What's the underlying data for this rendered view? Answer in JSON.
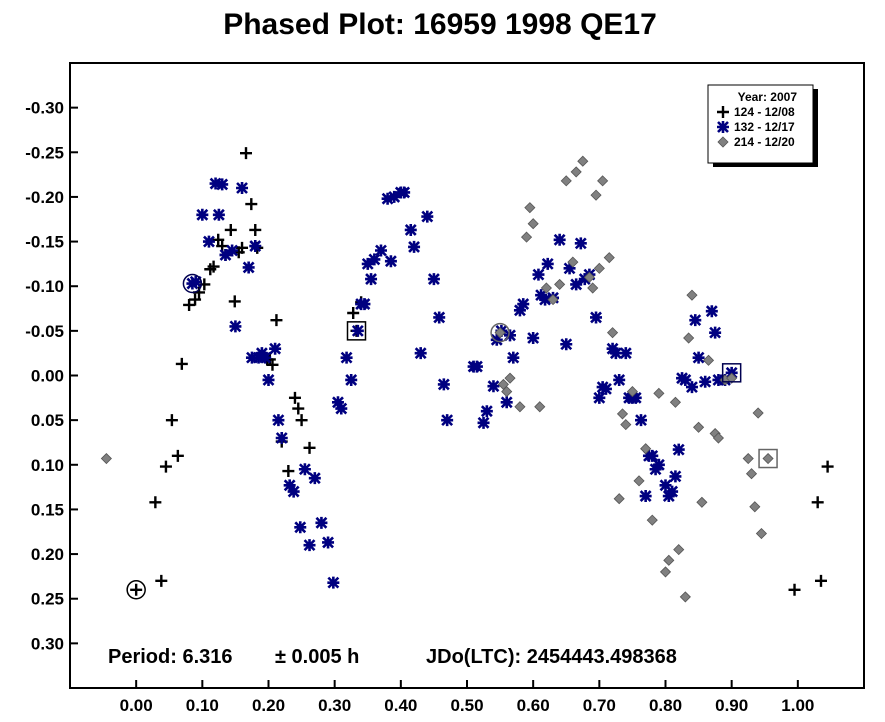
{
  "chart_data": {
    "type": "scatter",
    "title": "Phased Plot: 16959 1998 QE17",
    "xlabel": "",
    "ylabel": "",
    "xlim": [
      -0.1,
      1.1
    ],
    "ylim": [
      -0.35,
      0.35
    ],
    "y_inverted": true,
    "grid": false,
    "x_ticks": [
      0.0,
      0.1,
      0.2,
      0.3,
      0.4,
      0.5,
      0.6,
      0.7,
      0.8,
      0.9,
      1.0
    ],
    "x_tick_labels": [
      "0.00",
      "0.10",
      "0.20",
      "0.30",
      "0.40",
      "0.50",
      "0.60",
      "0.70",
      "0.80",
      "0.90",
      "1.00"
    ],
    "y_ticks": [
      -0.3,
      -0.25,
      -0.2,
      -0.15,
      -0.1,
      -0.05,
      0.0,
      0.05,
      0.1,
      0.15,
      0.2,
      0.25,
      0.3
    ],
    "y_tick_labels": [
      "-0.30",
      "-0.25",
      "-0.20",
      "-0.15",
      "-0.10",
      "-0.05",
      "0.00",
      "0.05",
      "0.10",
      "0.15",
      "0.20",
      "0.25",
      "0.30"
    ],
    "legend": {
      "placement": "top-right",
      "title": "Year: 2007",
      "entries": [
        "124 - 12/08",
        "132 - 12/17",
        "214 - 12/20"
      ]
    },
    "annotations": {
      "period_label": "Period: 6.316",
      "period_error": "± 0.005 h",
      "epoch": "JDo(LTC): 2454443.498368"
    },
    "series": [
      {
        "name": "124 - 12/08",
        "marker": "plus",
        "color": "#000000",
        "points": [
          [
            0.0,
            0.24
          ],
          [
            0.029,
            0.142
          ],
          [
            0.038,
            0.23
          ],
          [
            0.045,
            0.102
          ],
          [
            0.054,
            0.05
          ],
          [
            0.063,
            0.09
          ],
          [
            0.069,
            -0.013
          ],
          [
            0.08,
            -0.079
          ],
          [
            0.089,
            -0.085
          ],
          [
            0.095,
            -0.093
          ],
          [
            0.103,
            -0.102
          ],
          [
            0.112,
            -0.119
          ],
          [
            0.117,
            -0.122
          ],
          [
            0.124,
            -0.152
          ],
          [
            0.13,
            -0.145
          ],
          [
            0.135,
            -0.135
          ],
          [
            0.143,
            -0.163
          ],
          [
            0.149,
            -0.083
          ],
          [
            0.155,
            -0.138
          ],
          [
            0.16,
            -0.143
          ],
          [
            0.166,
            -0.249
          ],
          [
            0.174,
            -0.192
          ],
          [
            0.18,
            -0.163
          ],
          [
            0.183,
            -0.143
          ],
          [
            0.192,
            -0.022
          ],
          [
            0.198,
            -0.018
          ],
          [
            0.202,
            -0.018
          ],
          [
            0.206,
            -0.012
          ],
          [
            0.212,
            -0.062
          ],
          [
            0.22,
            0.074
          ],
          [
            0.23,
            0.107
          ],
          [
            0.24,
            0.025
          ],
          [
            0.245,
            0.037
          ],
          [
            0.25,
            0.05
          ],
          [
            0.262,
            0.081
          ],
          [
            0.328,
            -0.07
          ],
          [
            0.333,
            -0.05
          ],
          [
            0.34,
            -0.082
          ],
          [
            0.995,
            0.24
          ],
          [
            1.03,
            0.142
          ],
          [
            1.035,
            0.23
          ],
          [
            1.045,
            0.102
          ]
        ]
      },
      {
        "name": "132 - 12/17",
        "marker": "asterisk",
        "color": "#000080",
        "points": [
          [
            0.085,
            -0.103
          ],
          [
            0.09,
            -0.105
          ],
          [
            0.1,
            -0.18
          ],
          [
            0.11,
            -0.15
          ],
          [
            0.12,
            -0.215
          ],
          [
            0.125,
            -0.18
          ],
          [
            0.13,
            -0.214
          ],
          [
            0.135,
            -0.135
          ],
          [
            0.145,
            -0.14
          ],
          [
            0.15,
            -0.055
          ],
          [
            0.16,
            -0.21
          ],
          [
            0.17,
            -0.121
          ],
          [
            0.175,
            -0.02
          ],
          [
            0.18,
            -0.145
          ],
          [
            0.185,
            -0.02
          ],
          [
            0.19,
            -0.025
          ],
          [
            0.195,
            -0.02
          ],
          [
            0.2,
            0.005
          ],
          [
            0.21,
            -0.03
          ],
          [
            0.215,
            0.05
          ],
          [
            0.22,
            0.07
          ],
          [
            0.232,
            0.123
          ],
          [
            0.238,
            0.13
          ],
          [
            0.248,
            0.17
          ],
          [
            0.255,
            0.105
          ],
          [
            0.262,
            0.19
          ],
          [
            0.27,
            0.115
          ],
          [
            0.28,
            0.165
          ],
          [
            0.29,
            0.187
          ],
          [
            0.298,
            0.232
          ],
          [
            0.305,
            0.03
          ],
          [
            0.31,
            0.037
          ],
          [
            0.318,
            -0.02
          ],
          [
            0.325,
            0.005
          ],
          [
            0.335,
            -0.05
          ],
          [
            0.34,
            -0.08
          ],
          [
            0.345,
            -0.08
          ],
          [
            0.35,
            -0.125
          ],
          [
            0.355,
            -0.108
          ],
          [
            0.36,
            -0.13
          ],
          [
            0.37,
            -0.14
          ],
          [
            0.38,
            -0.198
          ],
          [
            0.385,
            -0.128
          ],
          [
            0.39,
            -0.2
          ],
          [
            0.4,
            -0.205
          ],
          [
            0.405,
            -0.205
          ],
          [
            0.415,
            -0.163
          ],
          [
            0.42,
            -0.144
          ],
          [
            0.43,
            -0.025
          ],
          [
            0.44,
            -0.178
          ],
          [
            0.45,
            -0.108
          ],
          [
            0.458,
            -0.065
          ],
          [
            0.465,
            0.01
          ],
          [
            0.47,
            0.05
          ],
          [
            0.51,
            -0.01
          ],
          [
            0.515,
            -0.01
          ],
          [
            0.525,
            0.053
          ],
          [
            0.53,
            0.04
          ],
          [
            0.54,
            0.012
          ],
          [
            0.545,
            -0.04
          ],
          [
            0.552,
            -0.05
          ],
          [
            0.56,
            0.03
          ],
          [
            0.565,
            -0.045
          ],
          [
            0.57,
            -0.02
          ],
          [
            0.58,
            -0.073
          ],
          [
            0.585,
            -0.08
          ],
          [
            0.6,
            -0.042
          ],
          [
            0.608,
            -0.113
          ],
          [
            0.612,
            -0.09
          ],
          [
            0.618,
            -0.085
          ],
          [
            0.622,
            -0.125
          ],
          [
            0.63,
            -0.087
          ],
          [
            0.64,
            -0.152
          ],
          [
            0.65,
            -0.035
          ],
          [
            0.655,
            -0.12
          ],
          [
            0.665,
            -0.102
          ],
          [
            0.672,
            -0.148
          ],
          [
            0.678,
            -0.108
          ],
          [
            0.685,
            -0.113
          ],
          [
            0.695,
            -0.065
          ],
          [
            0.7,
            0.025
          ],
          [
            0.705,
            0.013
          ],
          [
            0.71,
            0.015
          ],
          [
            0.72,
            -0.03
          ],
          [
            0.725,
            -0.025
          ],
          [
            0.73,
            0.005
          ],
          [
            0.74,
            -0.025
          ],
          [
            0.745,
            0.025
          ],
          [
            0.75,
            0.025
          ],
          [
            0.755,
            0.025
          ],
          [
            0.763,
            0.05
          ],
          [
            0.77,
            0.135
          ],
          [
            0.775,
            0.09
          ],
          [
            0.78,
            0.09
          ],
          [
            0.785,
            0.105
          ],
          [
            0.79,
            0.1
          ],
          [
            0.8,
            0.123
          ],
          [
            0.805,
            0.135
          ],
          [
            0.81,
            0.13
          ],
          [
            0.815,
            0.113
          ],
          [
            0.82,
            0.083
          ],
          [
            0.825,
            0.003
          ],
          [
            0.83,
            0.005
          ],
          [
            0.84,
            0.013
          ],
          [
            0.845,
            -0.062
          ],
          [
            0.85,
            -0.02
          ],
          [
            0.86,
            0.007
          ],
          [
            0.87,
            -0.072
          ],
          [
            0.875,
            -0.048
          ],
          [
            0.88,
            0.005
          ],
          [
            0.89,
            0.005
          ],
          [
            0.9,
            -0.003
          ]
        ]
      },
      {
        "name": "214 - 12/20",
        "marker": "diamond",
        "color": "#808080",
        "points": [
          [
            -0.045,
            0.093
          ],
          [
            0.55,
            -0.048
          ],
          [
            0.555,
            0.01
          ],
          [
            0.56,
            0.018
          ],
          [
            0.565,
            0.003
          ],
          [
            0.58,
            0.035
          ],
          [
            0.59,
            -0.155
          ],
          [
            0.595,
            -0.188
          ],
          [
            0.6,
            -0.17
          ],
          [
            0.61,
            0.035
          ],
          [
            0.62,
            -0.098
          ],
          [
            0.63,
            -0.085
          ],
          [
            0.64,
            -0.102
          ],
          [
            0.65,
            -0.218
          ],
          [
            0.66,
            -0.127
          ],
          [
            0.665,
            -0.228
          ],
          [
            0.675,
            -0.24
          ],
          [
            0.685,
            -0.11
          ],
          [
            0.69,
            -0.098
          ],
          [
            0.695,
            -0.202
          ],
          [
            0.7,
            -0.12
          ],
          [
            0.705,
            -0.218
          ],
          [
            0.715,
            -0.132
          ],
          [
            0.72,
            -0.048
          ],
          [
            0.73,
            0.138
          ],
          [
            0.735,
            0.043
          ],
          [
            0.74,
            0.055
          ],
          [
            0.75,
            0.018
          ],
          [
            0.76,
            0.118
          ],
          [
            0.77,
            0.082
          ],
          [
            0.78,
            0.162
          ],
          [
            0.79,
            0.02
          ],
          [
            0.8,
            0.22
          ],
          [
            0.805,
            0.207
          ],
          [
            0.815,
            0.03
          ],
          [
            0.82,
            0.195
          ],
          [
            0.83,
            0.248
          ],
          [
            0.835,
            -0.042
          ],
          [
            0.84,
            -0.09
          ],
          [
            0.85,
            0.058
          ],
          [
            0.855,
            0.142
          ],
          [
            0.865,
            -0.017
          ],
          [
            0.875,
            0.065
          ],
          [
            0.88,
            0.07
          ],
          [
            0.89,
            0.005
          ],
          [
            0.9,
            0.003
          ],
          [
            0.925,
            0.093
          ],
          [
            0.93,
            0.11
          ],
          [
            0.935,
            0.147
          ],
          [
            0.94,
            0.042
          ],
          [
            0.945,
            0.177
          ],
          [
            0.955,
            0.093
          ]
        ]
      }
    ],
    "highlighted_points": [
      {
        "series": "124 - 12/08",
        "shape": "circle",
        "x": 0.0,
        "y": 0.24
      },
      {
        "series": "124 - 12/08",
        "shape": "square",
        "x": 0.333,
        "y": -0.05
      },
      {
        "series": "132 - 12/17",
        "shape": "circle",
        "x": 0.085,
        "y": -0.103
      },
      {
        "series": "132 - 12/17",
        "shape": "square",
        "x": 0.9,
        "y": -0.003
      },
      {
        "series": "214 - 12/20",
        "shape": "circle",
        "x": 0.55,
        "y": -0.048
      },
      {
        "series": "214 - 12/20",
        "shape": "square",
        "x": 0.955,
        "y": 0.093
      }
    ]
  }
}
